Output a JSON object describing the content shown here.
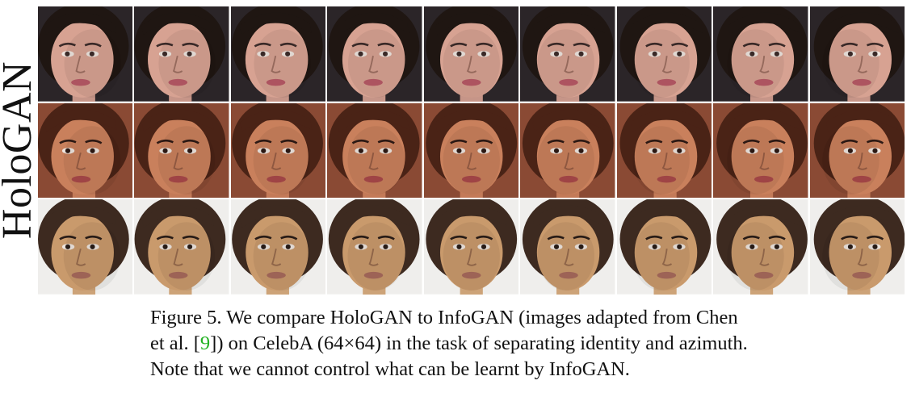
{
  "side_label": "HoloGAN",
  "caption": {
    "part1": "Figure 5. We compare HoloGAN to InfoGAN (images adapted from Chen et al. [",
    "ref": "9",
    "part2": "]) on CelebA (64×64) in the task of separating identity and azimuth. Note that we cannot control what can be learnt by InfoGAN."
  },
  "grid": {
    "rows": [
      {
        "skin": "#d7a292",
        "hair": "#1f1612",
        "bg": "#2b2528",
        "lips": "#b85a66",
        "eyes": "#3d2c2a",
        "yaw": [
          -0.55,
          -0.42,
          -0.3,
          -0.15,
          0.0,
          0.12,
          0.25,
          0.38,
          0.5
        ]
      },
      {
        "skin": "#c9805c",
        "hair": "#4a2316",
        "bg": "#8a4a34",
        "lips": "#a9494a",
        "eyes": "#2e1a15",
        "yaw": [
          -0.5,
          -0.38,
          -0.25,
          -0.12,
          0.0,
          0.12,
          0.25,
          0.38,
          0.5
        ]
      },
      {
        "skin": "#c99a6c",
        "hair": "#3d2a20",
        "bg": "#efeeec",
        "lips": "#a76a5c",
        "eyes": "#2a1d18",
        "yaw": [
          -0.5,
          -0.38,
          -0.25,
          -0.12,
          0.0,
          0.12,
          0.25,
          0.38,
          0.5
        ]
      }
    ]
  }
}
